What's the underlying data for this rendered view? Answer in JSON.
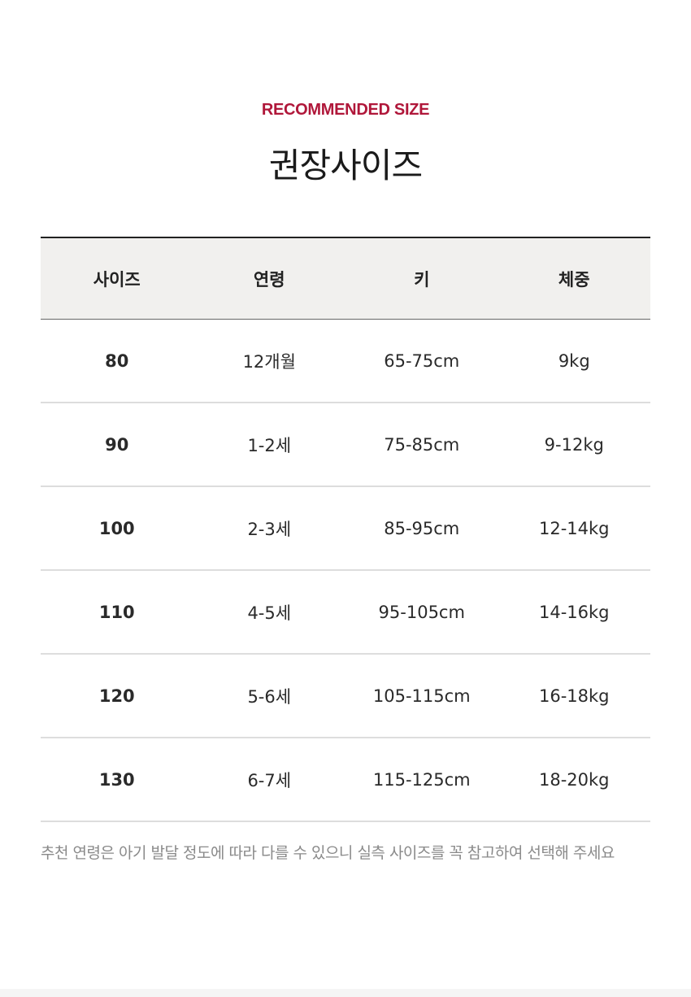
{
  "header": {
    "eyebrow": "RECOMMENDED SIZE",
    "title": "권장사이즈",
    "eyebrow_color": "#b0173a"
  },
  "table": {
    "columns": [
      "사이즈",
      "연령",
      "키",
      "체중"
    ],
    "rows": [
      [
        "80",
        "12개월",
        "65-75cm",
        "9kg"
      ],
      [
        "90",
        "1-2세",
        "75-85cm",
        "9-12kg"
      ],
      [
        "100",
        "2-3세",
        "85-95cm",
        "12-14kg"
      ],
      [
        "110",
        "4-5세",
        "95-105cm",
        "14-16kg"
      ],
      [
        "120",
        "5-6세",
        "105-115cm",
        "16-18kg"
      ],
      [
        "130",
        "6-7세",
        "115-125cm",
        "18-20kg"
      ]
    ]
  },
  "note": "추천 연령은 아기 발달 정도에 따라 다를 수 있으니 실측 사이즈를 꼭 참고하여 선택해 주세요"
}
